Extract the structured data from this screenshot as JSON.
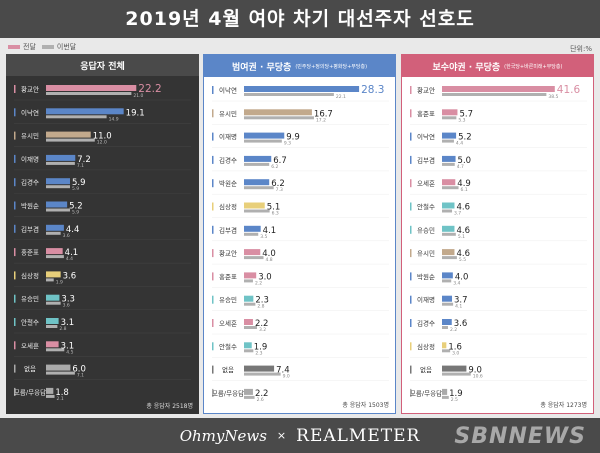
{
  "title": "2019년 4월 여야 차기 대선주자 선호도",
  "legend": {
    "current": "전달",
    "previous": "이번달"
  },
  "unit": "단위:%",
  "colors": {
    "previous_bar": "#b0b0b0",
    "dark_panel": "#343434",
    "blue": "#5b86c8",
    "red": "#d2607a"
  },
  "footer": {
    "brand1": "OhmyNews",
    "x": "×",
    "brand2": "REALMETER"
  },
  "watermark": "SBNNEWS",
  "chart_data": [
    {
      "type": "bar",
      "title": "응답자 전체",
      "subtitle": "",
      "sample": "총 응답자 2518명",
      "xlim": [
        0,
        30
      ],
      "categories": [
        "황교안",
        "이낙연",
        "유시민",
        "이재명",
        "김경수",
        "박원순",
        "김부겸",
        "홍준표",
        "심상정",
        "유승민",
        "안철수",
        "오세훈",
        "없음",
        "모름/무응답"
      ],
      "series": [
        {
          "values": [
            22.2,
            19.1,
            11.0,
            7.2,
            5.9,
            5.2,
            4.4,
            4.1,
            3.6,
            3.3,
            3.1,
            3.1,
            6.0,
            1.8
          ]
        },
        {
          "values": [
            21.0,
            14.9,
            12.0,
            7.1,
            5.9,
            5.9,
            3.6,
            4.4,
            1.9,
            3.6,
            2.8,
            4.5,
            7.1,
            2.1
          ]
        }
      ],
      "bar_colors": [
        "#d98ea3",
        "#5b86c8",
        "#c2a98c",
        "#5b86c8",
        "#5b86c8",
        "#5b86c8",
        "#5b86c8",
        "#d98ea3",
        "#e8cf7a",
        "#6fc3c6",
        "#6fc3c6",
        "#d98ea3",
        "#aaaaaa",
        "#aaaaaa"
      ]
    },
    {
      "type": "bar",
      "title": "범여권 · 무당층",
      "subtitle": "(민주당+정의당+평화당+무당층)",
      "sample": "총 응답자 1503명",
      "xlim": [
        0,
        30
      ],
      "categories": [
        "이낙연",
        "유시민",
        "이재명",
        "김경수",
        "박원순",
        "심상정",
        "김부겸",
        "황교안",
        "홍준표",
        "유승민",
        "오세훈",
        "안철수",
        "없음",
        "모름/무응답"
      ],
      "series": [
        {
          "values": [
            28.3,
            16.7,
            9.9,
            6.7,
            6.2,
            5.1,
            4.1,
            4.0,
            3.0,
            2.3,
            2.2,
            1.9,
            7.4,
            2.2
          ]
        },
        {
          "values": [
            22.1,
            17.2,
            9.3,
            6.2,
            7.3,
            6.3,
            3.5,
            4.8,
            2.2,
            2.8,
            3.2,
            2.3,
            9.0,
            2.6
          ]
        }
      ],
      "bar_colors": [
        "#5b86c8",
        "#c2a98c",
        "#5b86c8",
        "#5b86c8",
        "#5b86c8",
        "#e8cf7a",
        "#5b86c8",
        "#d98ea3",
        "#d98ea3",
        "#6fc3c6",
        "#d98ea3",
        "#6fc3c6",
        "#777777",
        "#aaaaaa"
      ]
    },
    {
      "type": "bar",
      "title": "보수야권 · 무당층",
      "subtitle": "(한국당+바른미래+무당층)",
      "sample": "총 응답자 1273명",
      "xlim": [
        0,
        45
      ],
      "categories": [
        "황교안",
        "홍준표",
        "이낙연",
        "김부겸",
        "오세훈",
        "안철수",
        "유승민",
        "유시민",
        "박원순",
        "이재명",
        "김경수",
        "심상정",
        "없음",
        "모름/무응답"
      ],
      "series": [
        {
          "values": [
            41.6,
            5.7,
            5.2,
            5.0,
            4.9,
            4.6,
            4.6,
            4.6,
            4.0,
            3.7,
            3.6,
            1.6,
            9.0,
            1.9
          ]
        },
        {
          "values": [
            38.5,
            5.3,
            4.4,
            4.7,
            6.1,
            3.7,
            5.1,
            5.5,
            3.4,
            4.1,
            2.2,
            3.0,
            10.6,
            2.5
          ]
        }
      ],
      "bar_colors": [
        "#d98ea3",
        "#d98ea3",
        "#5b86c8",
        "#5b86c8",
        "#d98ea3",
        "#6fc3c6",
        "#6fc3c6",
        "#c2a98c",
        "#5b86c8",
        "#5b86c8",
        "#5b86c8",
        "#e8cf7a",
        "#777777",
        "#aaaaaa"
      ]
    }
  ]
}
